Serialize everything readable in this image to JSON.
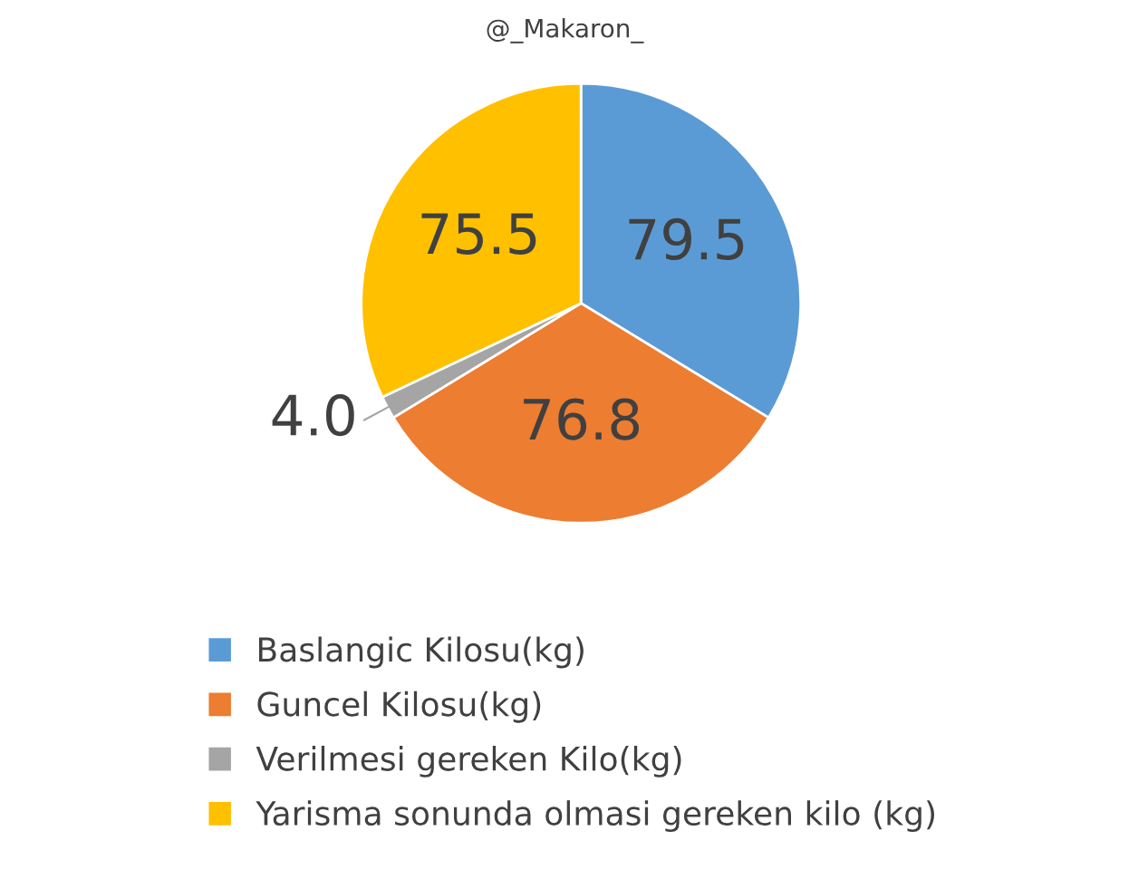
{
  "chart_data": {
    "type": "pie",
    "title": "@_Makaron_",
    "categories": [
      "Baslangic Kilosu(kg)",
      "Guncel Kilosu(kg)",
      "Verilmesi gereken Kilo(kg)",
      "Yarisma sonunda olmasi gereken kilo (kg)"
    ],
    "values": [
      79.5,
      76.8,
      4.0,
      75.5
    ],
    "colors": [
      "#5b9bd5",
      "#ed7d31",
      "#a5a5a5",
      "#ffc000"
    ],
    "value_labels": [
      "79.5",
      "76.8",
      "4.0",
      "75.5"
    ],
    "legend": "bottom"
  }
}
